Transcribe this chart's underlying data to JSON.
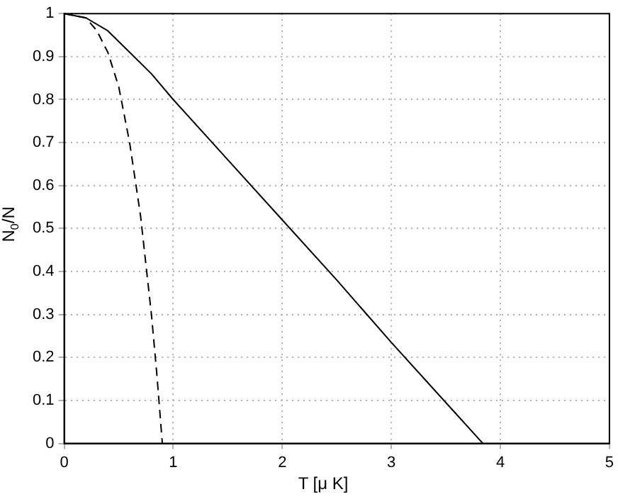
{
  "chart_data": {
    "type": "line",
    "xlabel": "T [μ K]",
    "ylabel": "N$_{0}$/N",
    "series": [
      {
        "color": "#000000",
        "line_style": "solid",
        "x": [
          0,
          0.2,
          0.4,
          0.6,
          0.8,
          1,
          1.5,
          2,
          2.5,
          3,
          3.5,
          3.84
        ],
        "values": [
          1,
          0.99,
          0.96,
          0.91,
          0.86,
          0.8,
          0.66,
          0.52,
          0.38,
          0.235,
          0.095,
          0
        ]
      },
      {
        "color": "#000000",
        "line_style": "dashed",
        "x": [
          0,
          0.2,
          0.3,
          0.4,
          0.5,
          0.6,
          0.7,
          0.8,
          0.85,
          0.9
        ],
        "values": [
          1,
          0.99,
          0.96,
          0.91,
          0.83,
          0.7,
          0.53,
          0.3,
          0.16,
          0
        ]
      }
    ],
    "xlim": [
      0,
      5
    ],
    "xticks": [
      0,
      1,
      2,
      3,
      4,
      5
    ],
    "ylim": [
      0,
      1
    ],
    "yticks": [
      0,
      0.1,
      0.2,
      0.3,
      0.4,
      0.5,
      0.6,
      0.7,
      0.8,
      0.9,
      1
    ],
    "grid": true,
    "marker": "none",
    "legend": false
  }
}
